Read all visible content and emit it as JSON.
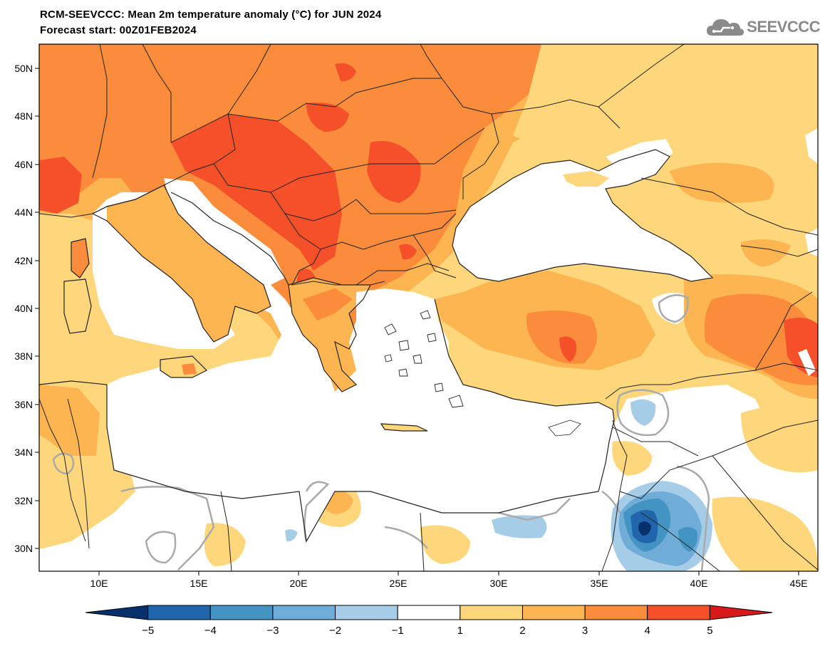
{
  "header": {
    "title_line1": "RCM-SEEVCCC: Mean 2m temperature anomaly (°C) for JUN 2024",
    "title_line2": "Forecast start: 00Z01FEB2024",
    "logo_text": "SEEVCCC",
    "logo_icon": "cloud-icon"
  },
  "map": {
    "lat_labels": [
      "50N",
      "48N",
      "46N",
      "44N",
      "42N",
      "40N",
      "38N",
      "36N",
      "34N",
      "32N",
      "30N"
    ],
    "lon_labels": [
      "10E",
      "15E",
      "20E",
      "25E",
      "30E",
      "35E",
      "40E",
      "45E"
    ],
    "colors": {
      "sea": "#ffffff",
      "border": "#222222",
      "contour": "#aaaaaa"
    }
  },
  "colorbar": {
    "tick_labels": [
      "−5",
      "−4",
      "−3",
      "−2",
      "−1",
      "1",
      "2",
      "3",
      "4",
      "5"
    ],
    "bins": [
      {
        "from": -6,
        "to": -5,
        "color": "#08306b"
      },
      {
        "from": -5,
        "to": -4,
        "color": "#2166ac"
      },
      {
        "from": -4,
        "to": -3,
        "color": "#4393c3"
      },
      {
        "from": -3,
        "to": -2,
        "color": "#6fadd8"
      },
      {
        "from": -2,
        "to": -1,
        "color": "#a6cde8"
      },
      {
        "from": -1,
        "to": 1,
        "color": "#ffffff"
      },
      {
        "from": 1,
        "to": 2,
        "color": "#fed77c"
      },
      {
        "from": 2,
        "to": 3,
        "color": "#fdb551"
      },
      {
        "from": 3,
        "to": 4,
        "color": "#fa8c3c"
      },
      {
        "from": 4,
        "to": 5,
        "color": "#f4512b"
      },
      {
        "from": 5,
        "to": 6,
        "color": "#d7191c"
      }
    ]
  }
}
